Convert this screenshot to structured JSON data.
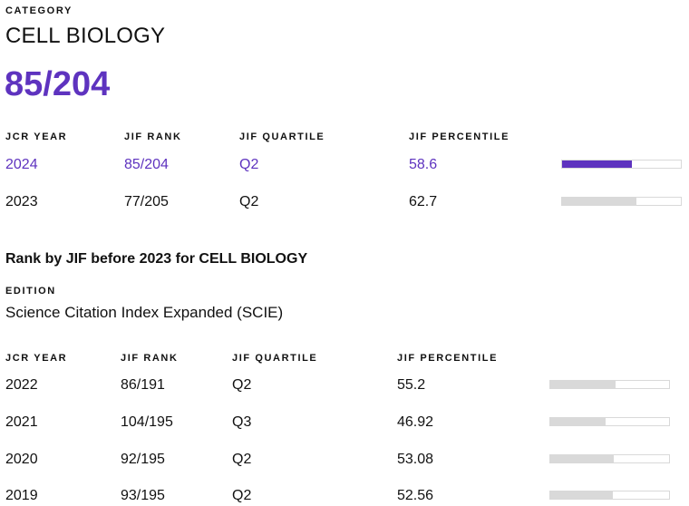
{
  "category": {
    "label": "CATEGORY",
    "name": "CELL BIOLOGY",
    "rank": "85/204"
  },
  "current_table": {
    "headers": [
      "JCR YEAR",
      "JIF RANK",
      "JIF QUARTILE",
      "JIF PERCENTILE"
    ],
    "rows": [
      {
        "year": "2024",
        "rank": "85/204",
        "quartile": "Q2",
        "percentile": "58.6",
        "percentile_value": 58.6,
        "highlight": true
      },
      {
        "year": "2023",
        "rank": "77/205",
        "quartile": "Q2",
        "percentile": "62.7",
        "percentile_value": 62.7,
        "highlight": false
      }
    ]
  },
  "before_2023": {
    "title": "Rank by JIF before 2023 for CELL BIOLOGY",
    "edition_label": "EDITION",
    "edition_name": "Science Citation Index Expanded (SCIE)",
    "headers": [
      "JCR YEAR",
      "JIF RANK",
      "JIF QUARTILE",
      "JIF PERCENTILE"
    ],
    "rows": [
      {
        "year": "2022",
        "rank": "86/191",
        "quartile": "Q2",
        "percentile": "55.2",
        "percentile_value": 55.2
      },
      {
        "year": "2021",
        "rank": "104/195",
        "quartile": "Q3",
        "percentile": "46.92",
        "percentile_value": 46.92
      },
      {
        "year": "2020",
        "rank": "92/195",
        "quartile": "Q2",
        "percentile": "53.08",
        "percentile_value": 53.08
      },
      {
        "year": "2019",
        "rank": "93/195",
        "quartile": "Q2",
        "percentile": "52.56",
        "percentile_value": 52.56
      }
    ]
  },
  "colors": {
    "accent": "#5e33bf",
    "bar_track": "#d9d9d9"
  }
}
